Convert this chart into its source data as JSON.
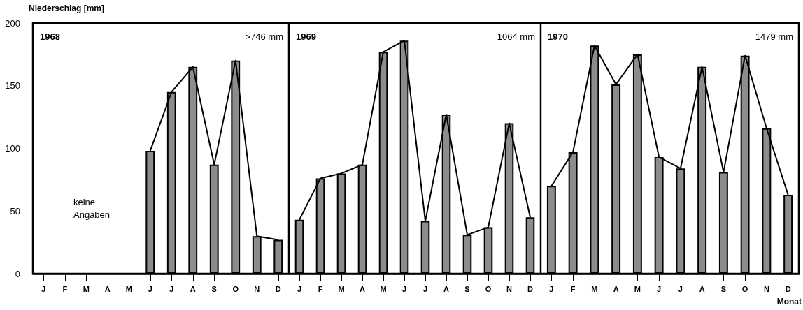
{
  "chart_data": [
    {
      "type": "bar",
      "title": "1968",
      "ylabel": "Niederschlag [mm]",
      "annotations": [
        ">746 mm",
        "keine Angaben"
      ],
      "categories": [
        "J",
        "F",
        "M",
        "A",
        "M",
        "J",
        "J",
        "A",
        "S",
        "O",
        "N",
        "D"
      ],
      "ylim": [
        0,
        200
      ],
      "yticks": [
        0,
        50,
        100,
        150,
        200
      ],
      "grid": false,
      "series": [
        {
          "color": "#8c8c8c",
          "values": [
            null,
            null,
            null,
            null,
            null,
            98,
            145,
            165,
            87,
            170,
            30,
            27
          ]
        },
        {
          "type": "line",
          "color": "#000000",
          "marker": "none",
          "values": [
            null,
            null,
            null,
            null,
            null,
            98,
            145,
            165,
            87,
            170,
            30,
            27
          ]
        }
      ]
    },
    {
      "type": "bar",
      "title": "1969",
      "annotations": [
        "1064 mm"
      ],
      "categories": [
        "J",
        "F",
        "M",
        "A",
        "M",
        "J",
        "J",
        "A",
        "S",
        "O",
        "N",
        "D"
      ],
      "ylim": [
        0,
        200
      ],
      "yticks": [
        0,
        50,
        100,
        150,
        200
      ],
      "tick_labels": "x",
      "grid": false,
      "series": [
        {
          "color": "#8c8c8c",
          "values": [
            43,
            76,
            80,
            87,
            177,
            186,
            42,
            127,
            31,
            37,
            120,
            45
          ]
        },
        {
          "type": "line",
          "color": "#000000",
          "marker": "none",
          "values": [
            43,
            76,
            80,
            87,
            177,
            186,
            42,
            127,
            31,
            37,
            120,
            45
          ]
        }
      ]
    },
    {
      "type": "bar",
      "title": "1970",
      "xlabel": "Monat",
      "annotations": [
        "1479 mm"
      ],
      "categories": [
        "J",
        "F",
        "M",
        "A",
        "M",
        "J",
        "J",
        "A",
        "S",
        "O",
        "N",
        "D"
      ],
      "ylim": [
        0,
        200
      ],
      "yticks": [
        0,
        50,
        100,
        150,
        200
      ],
      "tick_labels": "x",
      "grid": false,
      "series": [
        {
          "color": "#8c8c8c",
          "values": [
            70,
            97,
            182,
            151,
            175,
            93,
            84,
            165,
            81,
            174,
            116,
            63
          ]
        },
        {
          "type": "line",
          "color": "#000000",
          "marker": "none",
          "values": [
            70,
            97,
            182,
            151,
            175,
            93,
            84,
            165,
            81,
            174,
            116,
            63
          ]
        }
      ]
    }
  ]
}
